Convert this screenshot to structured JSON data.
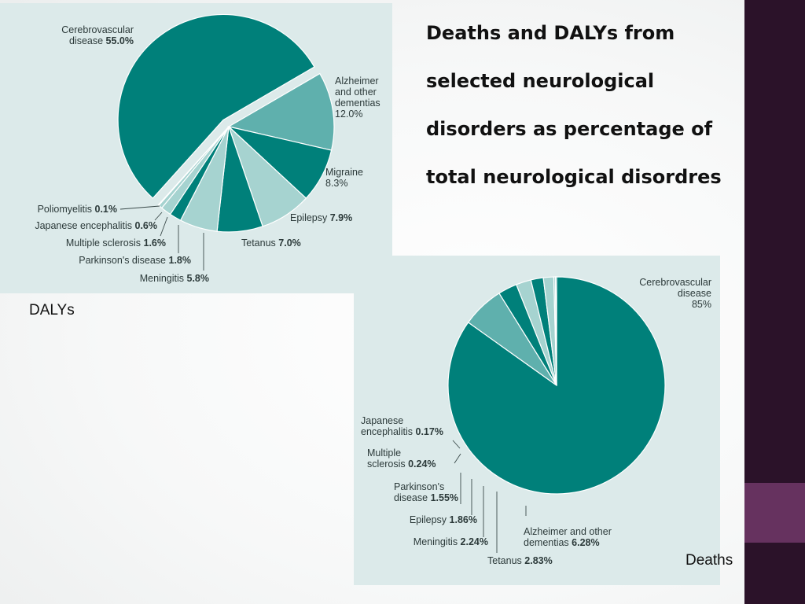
{
  "slide": {
    "title": "Deaths and DALYs  from selected neurological disorders as percentage of total neurological disordres"
  },
  "colors": {
    "sidebar": "#2b1229",
    "sidebar_accent": "#66325f",
    "panel": "#dceaea",
    "slice_dark": "#00807a",
    "slice_mid": "#5fb0ad",
    "slice_light": "#a6d3d0",
    "slice_pale": "#c9e3e1"
  },
  "chart_data": [
    {
      "type": "pie",
      "title": "DALYs",
      "slices": [
        {
          "name": "Cerebrovascular disease",
          "pct_label": "55.0%",
          "value": 55.0
        },
        {
          "name": "Alzheimer and other dementias",
          "pct_label": "12.0%",
          "value": 12.0
        },
        {
          "name": "Migraine",
          "pct_label": "8.3%",
          "value": 8.3
        },
        {
          "name": "Epilepsy",
          "pct_label": "7.9%",
          "value": 7.9
        },
        {
          "name": "Tetanus",
          "pct_label": "7.0%",
          "value": 7.0
        },
        {
          "name": "Meningitis",
          "pct_label": "5.8%",
          "value": 5.8
        },
        {
          "name": "Parkinson's disease",
          "pct_label": "1.8%",
          "value": 1.8
        },
        {
          "name": "Multiple sclerosis",
          "pct_label": "1.6%",
          "value": 1.6
        },
        {
          "name": "Japanese encephalitis",
          "pct_label": "0.6%",
          "value": 0.6
        },
        {
          "name": "Poliomyelitis",
          "pct_label": "0.1%",
          "value": 0.1
        }
      ]
    },
    {
      "type": "pie",
      "title": "Deaths",
      "slices": [
        {
          "name": "Cerebrovascular disease",
          "pct_label": "85%",
          "value": 85
        },
        {
          "name": "Alzheimer and other dementias",
          "pct_label": "6.28%",
          "value": 6.28
        },
        {
          "name": "Tetanus",
          "pct_label": "2.83%",
          "value": 2.83
        },
        {
          "name": "Meningitis",
          "pct_label": "2.24%",
          "value": 2.24
        },
        {
          "name": "Epilepsy",
          "pct_label": "1.86%",
          "value": 1.86
        },
        {
          "name": "Parkinson's disease",
          "pct_label": "1.55%",
          "value": 1.55
        },
        {
          "name": "Multiple sclerosis",
          "pct_label": "0.24%",
          "value": 0.24
        },
        {
          "name": "Japanese encephalitis",
          "pct_label": "0.17%",
          "value": 0.17
        }
      ]
    }
  ]
}
